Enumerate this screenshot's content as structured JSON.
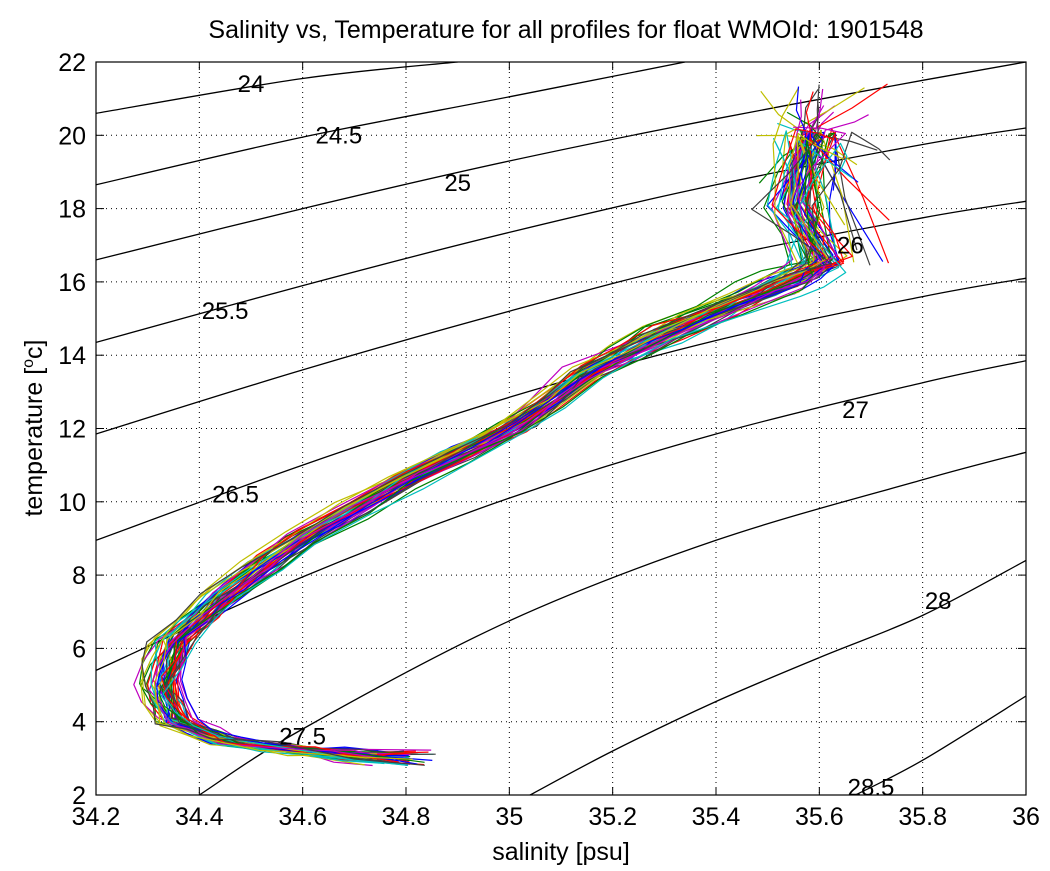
{
  "chart_data": {
    "type": "line",
    "title": "Salinity vs, Temperature for all profiles for float WMOId: 1901548",
    "xlabel": "salinity [psu]",
    "ylabel_main": "temperature [",
    "ylabel_sup": "o",
    "ylabel_end": "c]",
    "xlim": [
      34.2,
      36
    ],
    "ylim": [
      2,
      22
    ],
    "grid": true,
    "x_ticks": [
      "34.2",
      "34.4",
      "34.6",
      "34.8",
      "35",
      "35.2",
      "35.4",
      "35.6",
      "35.8",
      "36"
    ],
    "y_ticks": [
      "2",
      "4",
      "6",
      "8",
      "10",
      "12",
      "14",
      "16",
      "18",
      "20",
      "22"
    ],
    "isopycnals": [
      {
        "label": "24",
        "label_at": [
          34.5,
          21.4
        ],
        "points": [
          [
            34.2,
            20.6
          ],
          [
            34.6,
            21.55
          ],
          [
            34.9,
            22.0
          ]
        ]
      },
      {
        "label": "24.5",
        "label_at": [
          34.67,
          20.0
        ],
        "points": [
          [
            34.2,
            18.65
          ],
          [
            34.6,
            19.95
          ],
          [
            35.0,
            21.05
          ],
          [
            35.34,
            22.0
          ]
        ]
      },
      {
        "label": "25",
        "label_at": [
          34.9,
          18.7
        ],
        "points": [
          [
            34.2,
            16.6
          ],
          [
            34.6,
            18.0
          ],
          [
            35.0,
            19.3
          ],
          [
            35.4,
            20.45
          ],
          [
            35.8,
            21.5
          ],
          [
            36.0,
            22.0
          ]
        ]
      },
      {
        "label": "25.5",
        "label_at": [
          34.45,
          15.2
        ],
        "points": [
          [
            34.2,
            14.35
          ],
          [
            34.6,
            15.9
          ],
          [
            35.0,
            17.35
          ],
          [
            35.4,
            18.65
          ],
          [
            35.8,
            19.75
          ],
          [
            36.0,
            20.2
          ]
        ]
      },
      {
        "label": "26",
        "label_at": [
          35.66,
          17.0
        ],
        "points": [
          [
            34.2,
            11.85
          ],
          [
            34.6,
            13.6
          ],
          [
            35.0,
            15.2
          ],
          [
            35.4,
            16.65
          ],
          [
            35.8,
            17.75
          ],
          [
            36.0,
            18.2
          ]
        ]
      },
      {
        "label": "26.5",
        "label_at": [
          34.47,
          10.2
        ],
        "points": [
          [
            34.2,
            8.95
          ],
          [
            34.6,
            11.0
          ],
          [
            35.0,
            12.85
          ],
          [
            35.4,
            14.4
          ],
          [
            35.8,
            15.6
          ],
          [
            36.0,
            16.1
          ]
        ]
      },
      {
        "label": "27",
        "label_at": [
          35.67,
          12.5
        ],
        "points": [
          [
            34.2,
            5.4
          ],
          [
            34.6,
            7.95
          ],
          [
            35.0,
            10.1
          ],
          [
            35.4,
            11.85
          ],
          [
            35.8,
            13.25
          ],
          [
            36.0,
            13.85
          ]
        ]
      },
      {
        "label": "27.5",
        "label_at": [
          34.6,
          3.6
        ],
        "points": [
          [
            34.4,
            2.0
          ],
          [
            34.6,
            3.8
          ],
          [
            35.0,
            6.75
          ],
          [
            35.4,
            8.95
          ],
          [
            35.8,
            10.6
          ],
          [
            36.0,
            11.35
          ]
        ]
      },
      {
        "label": "28",
        "label_at": [
          35.83,
          7.3
        ],
        "points": [
          [
            35.04,
            2.0
          ],
          [
            35.2,
            3.2
          ],
          [
            35.4,
            4.55
          ],
          [
            35.6,
            5.75
          ],
          [
            35.8,
            6.9
          ],
          [
            36.0,
            8.4
          ]
        ]
      },
      {
        "label": "28.5",
        "label_at": [
          35.7,
          2.2
        ],
        "points": [
          [
            35.67,
            2.0
          ],
          [
            35.8,
            2.95
          ],
          [
            36.0,
            4.7
          ]
        ]
      }
    ],
    "profile_colors": [
      "#0000ff",
      "#008000",
      "#ff0000",
      "#00bfbf",
      "#bf00bf",
      "#bfbf00",
      "#404040"
    ],
    "mean_profile": [
      [
        35.6,
        21.5
      ],
      [
        35.58,
        20.0
      ],
      [
        35.55,
        18.0
      ],
      [
        35.6,
        16.5
      ],
      [
        35.5,
        15.8
      ],
      [
        35.3,
        14.6
      ],
      [
        35.15,
        13.5
      ],
      [
        35.0,
        12.0
      ],
      [
        34.8,
        10.6
      ],
      [
        34.6,
        9.0
      ],
      [
        34.45,
        7.5
      ],
      [
        34.35,
        6.2
      ],
      [
        34.32,
        5.0
      ],
      [
        34.35,
        4.0
      ],
      [
        34.45,
        3.45
      ],
      [
        34.6,
        3.2
      ],
      [
        34.8,
        3.1
      ]
    ],
    "profile_count": 56
  }
}
